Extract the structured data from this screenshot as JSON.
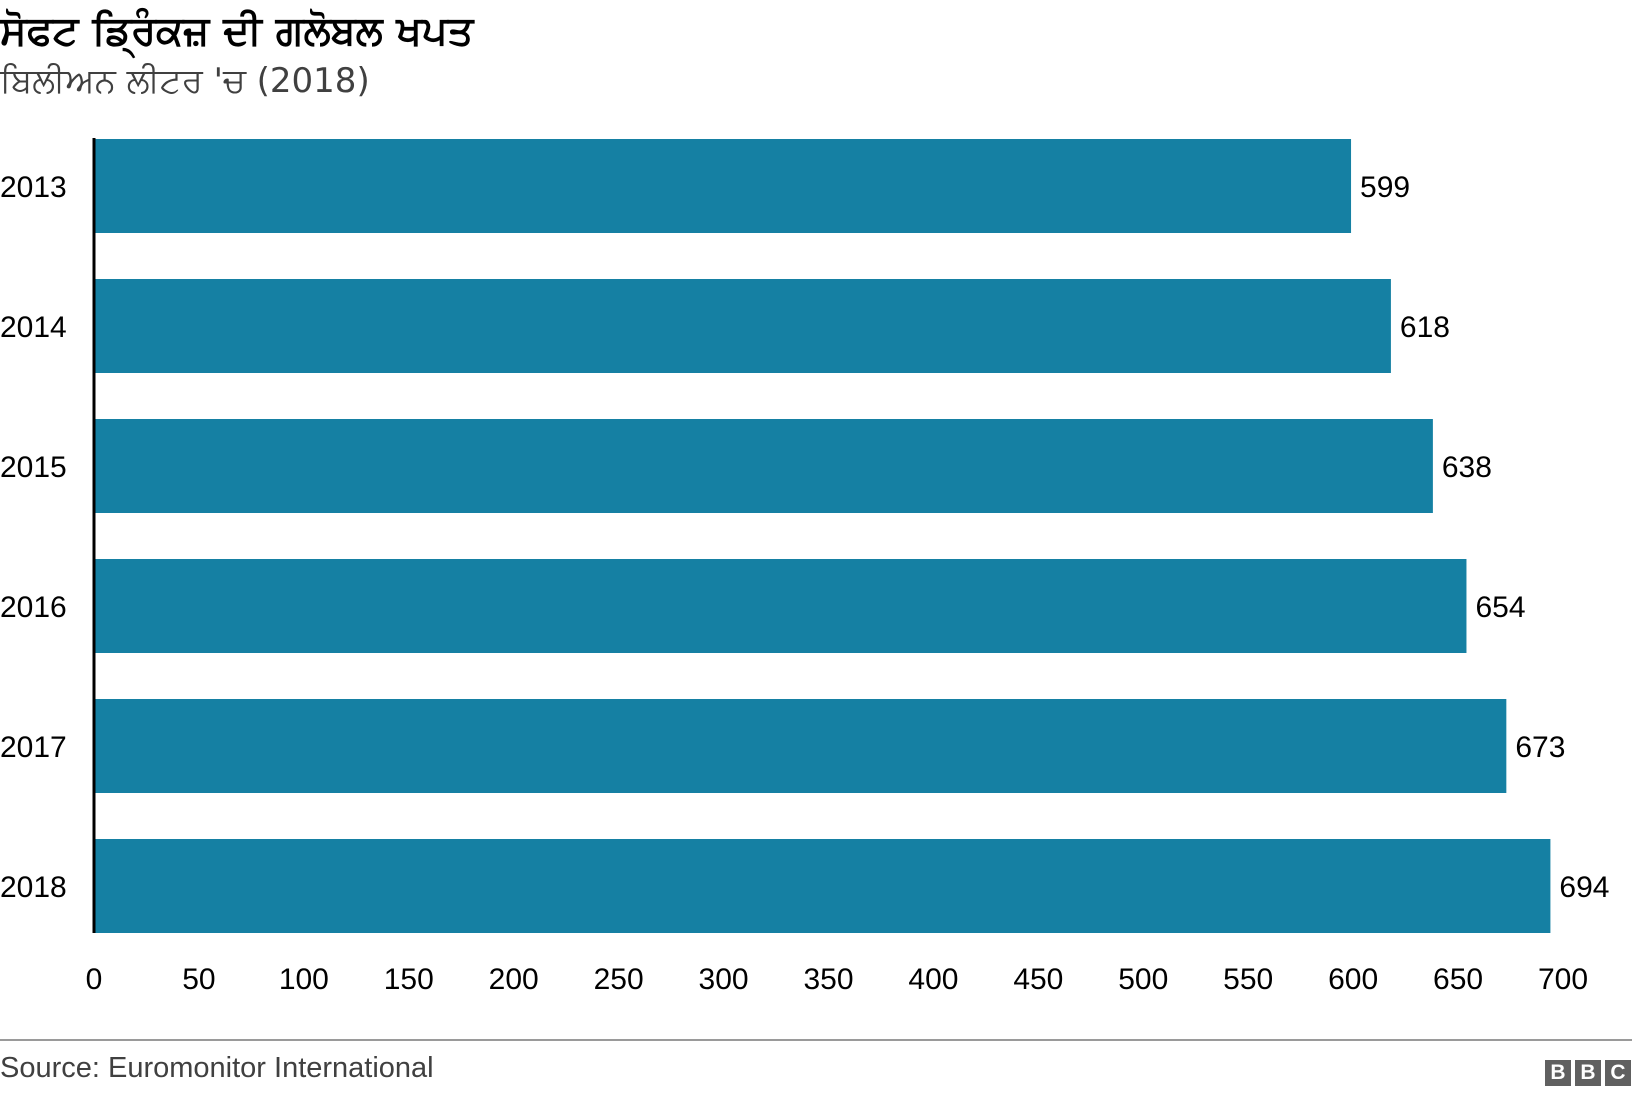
{
  "header": {
    "title": "ਸੋਫਟ ਡ੍ਰਿੰਕਜ਼ ਦੀ ਗਲੋਬਲ ਖਪਤ",
    "subtitle": "ਬਿਲੀਅਨ ਲੀਟਰ 'ਚ (2018)"
  },
  "footer": {
    "source": "Source: Euromonitor International",
    "logo_letters": [
      "B",
      "B",
      "C"
    ]
  },
  "colors": {
    "bar": "#1580a3",
    "axis": "#000000",
    "text": "#000000"
  },
  "chart_data": {
    "type": "bar",
    "orientation": "horizontal",
    "title": "ਸੋਫਟ ਡ੍ਰਿੰਕਜ਼ ਦੀ ਗਲੋਬਲ ਖਪਤ",
    "subtitle": "ਬਿਲੀਅਨ ਲੀਟਰ 'ਚ (2018)",
    "categories": [
      "2013",
      "2014",
      "2015",
      "2016",
      "2017",
      "2018"
    ],
    "values": [
      599,
      618,
      638,
      654,
      673,
      694
    ],
    "data_labels": [
      "599",
      "618",
      "638",
      "654",
      "673",
      "694"
    ],
    "xlim": [
      0,
      700
    ],
    "xticks": [
      0,
      50,
      100,
      150,
      200,
      250,
      300,
      350,
      400,
      450,
      500,
      550,
      600,
      650,
      700
    ],
    "xlabel": "",
    "ylabel": "",
    "grid": false,
    "legend": "none"
  }
}
